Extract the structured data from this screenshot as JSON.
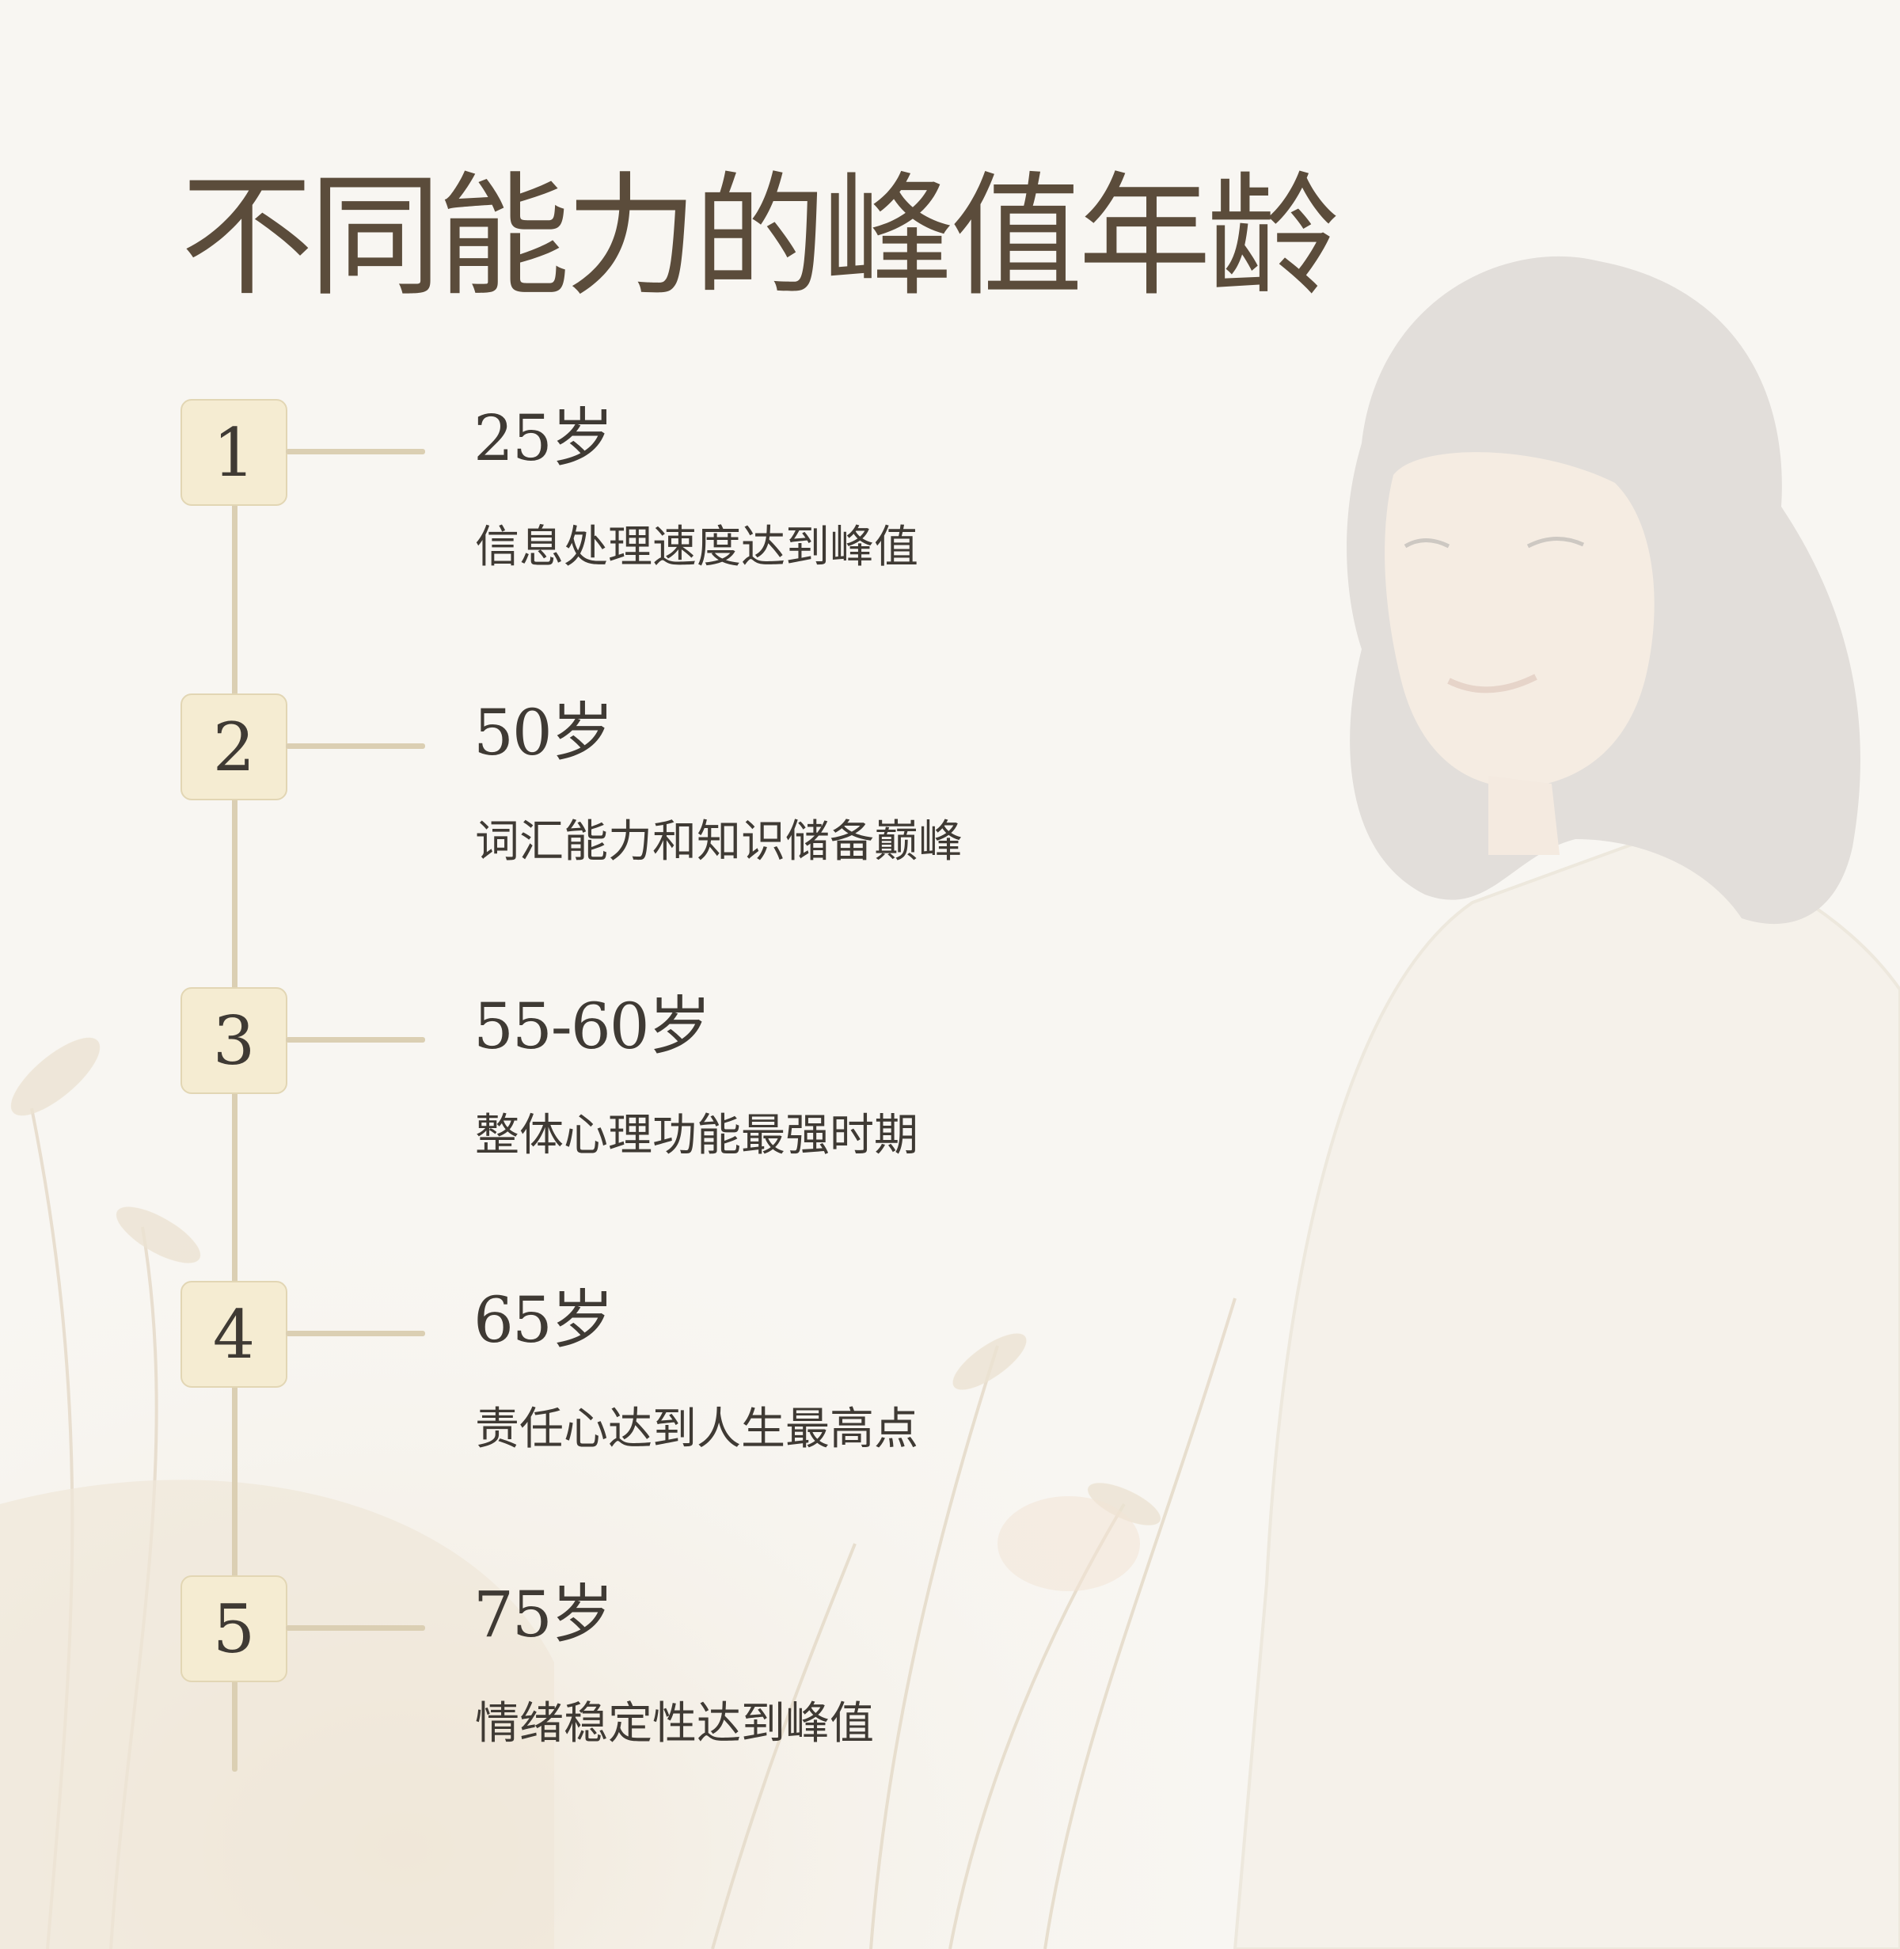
{
  "title": "不同能力的峰值年龄",
  "steps": [
    {
      "number": "1",
      "age": "25岁",
      "description": "信息处理速度达到峰值"
    },
    {
      "number": "2",
      "age": "50岁",
      "description": "词汇能力和知识储备巅峰"
    },
    {
      "number": "3",
      "age": "55-60岁",
      "description": "整体心理功能最强时期"
    },
    {
      "number": "4",
      "age": "65岁",
      "description": "责任心达到人生最高点"
    },
    {
      "number": "5",
      "age": "75岁",
      "description": "情绪稳定性达到峰值"
    }
  ],
  "colors": {
    "background": "#f8f6f2",
    "title": "#5b4c3b",
    "text": "#3f3a34",
    "badge_fill": "#f5ecd2",
    "badge_border": "#e2d6b4",
    "line": "#dbcfb3"
  }
}
